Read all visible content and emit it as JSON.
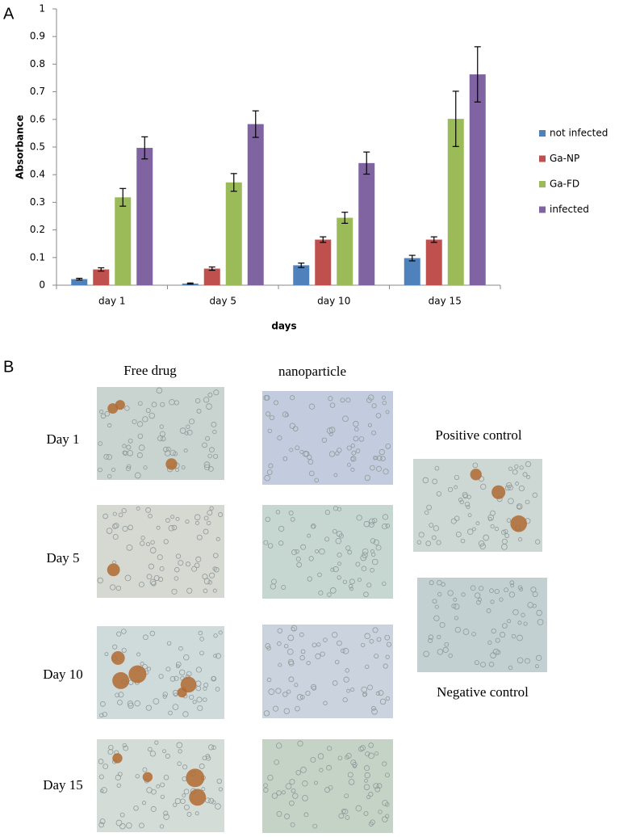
{
  "figure": {
    "panel_labels": [
      "A",
      "B"
    ]
  },
  "chart_data": {
    "type": "bar",
    "x_label": "days",
    "y_label": "Absorbance",
    "categories": [
      "day 1",
      "day 5",
      "day 10",
      "day 15"
    ],
    "series": [
      {
        "name": "not infected",
        "color": "#4f81bd",
        "values": [
          0.022,
          0.006,
          0.072,
          0.098
        ],
        "errors": [
          0.003,
          0.002,
          0.008,
          0.01
        ]
      },
      {
        "name": "Ga-NP",
        "color": "#c0504d",
        "values": [
          0.057,
          0.06,
          0.165,
          0.165
        ],
        "errors": [
          0.006,
          0.006,
          0.01,
          0.01
        ]
      },
      {
        "name": "Ga-FD",
        "color": "#9bbb59",
        "values": [
          0.318,
          0.372,
          0.244,
          0.602
        ],
        "errors": [
          0.032,
          0.032,
          0.02,
          0.1
        ]
      },
      {
        "name": "infected",
        "color": "#8064a2",
        "values": [
          0.497,
          0.583,
          0.442,
          0.763
        ],
        "errors": [
          0.04,
          0.048,
          0.04,
          0.1
        ]
      }
    ],
    "ylim": [
      0,
      1
    ],
    "yticks": [
      0,
      0.1,
      0.2,
      0.3,
      0.4,
      0.5,
      0.6,
      0.7,
      0.8,
      0.9,
      1
    ],
    "legend": "right"
  },
  "panel_b": {
    "column_headers": [
      "Free drug",
      "nanoparticle"
    ],
    "row_labels": [
      "Day 1",
      "Day 5",
      "Day 10",
      "Day 15"
    ],
    "positive_control": "Positive control",
    "negative_control": "Negative control"
  }
}
